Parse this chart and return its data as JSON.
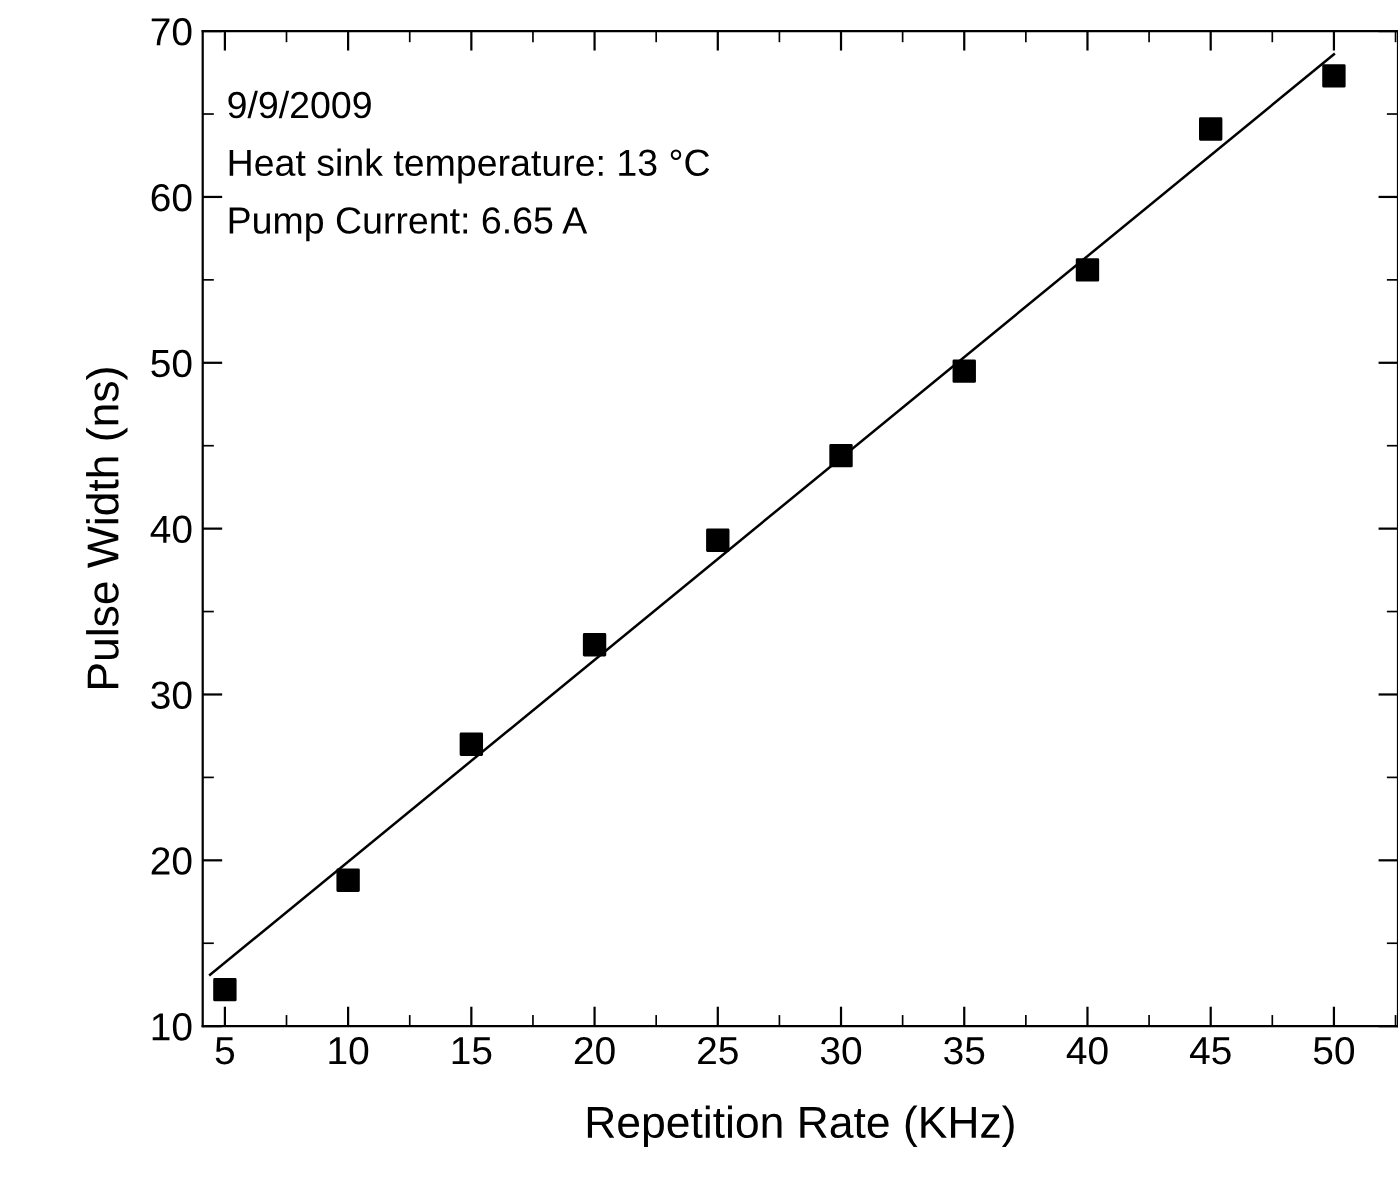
{
  "chart_data": {
    "type": "scatter",
    "xlabel": "Repetition Rate (KHz)",
    "ylabel": "Pulse Width (ns)",
    "annotations": [
      "9/9/2009",
      "Heat sink temperature: 13 °C",
      "Pump Current: 6.65 A"
    ],
    "series": [
      {
        "color": "#000000",
        "marker": "square",
        "x": [
          5,
          10,
          15,
          20,
          25,
          30,
          35,
          40,
          45,
          50
        ],
        "values": [
          12.2,
          18.8,
          27.0,
          33.0,
          39.3,
          44.4,
          49.5,
          55.6,
          64.1,
          67.3
        ]
      },
      {
        "type": "line",
        "color": "#000000",
        "marker": "none",
        "line_style": "solid",
        "x": [
          4.4,
          50
        ],
        "values": [
          13.1,
          68.6
        ]
      }
    ],
    "xlim": [
      4.1,
      52.6
    ],
    "ylim": [
      10,
      70
    ],
    "xticks": [
      5,
      10,
      15,
      20,
      25,
      30,
      35,
      40,
      45,
      50
    ],
    "yticks": [
      10,
      20,
      30,
      40,
      50,
      60,
      70
    ],
    "grid": false,
    "legend": false
  }
}
